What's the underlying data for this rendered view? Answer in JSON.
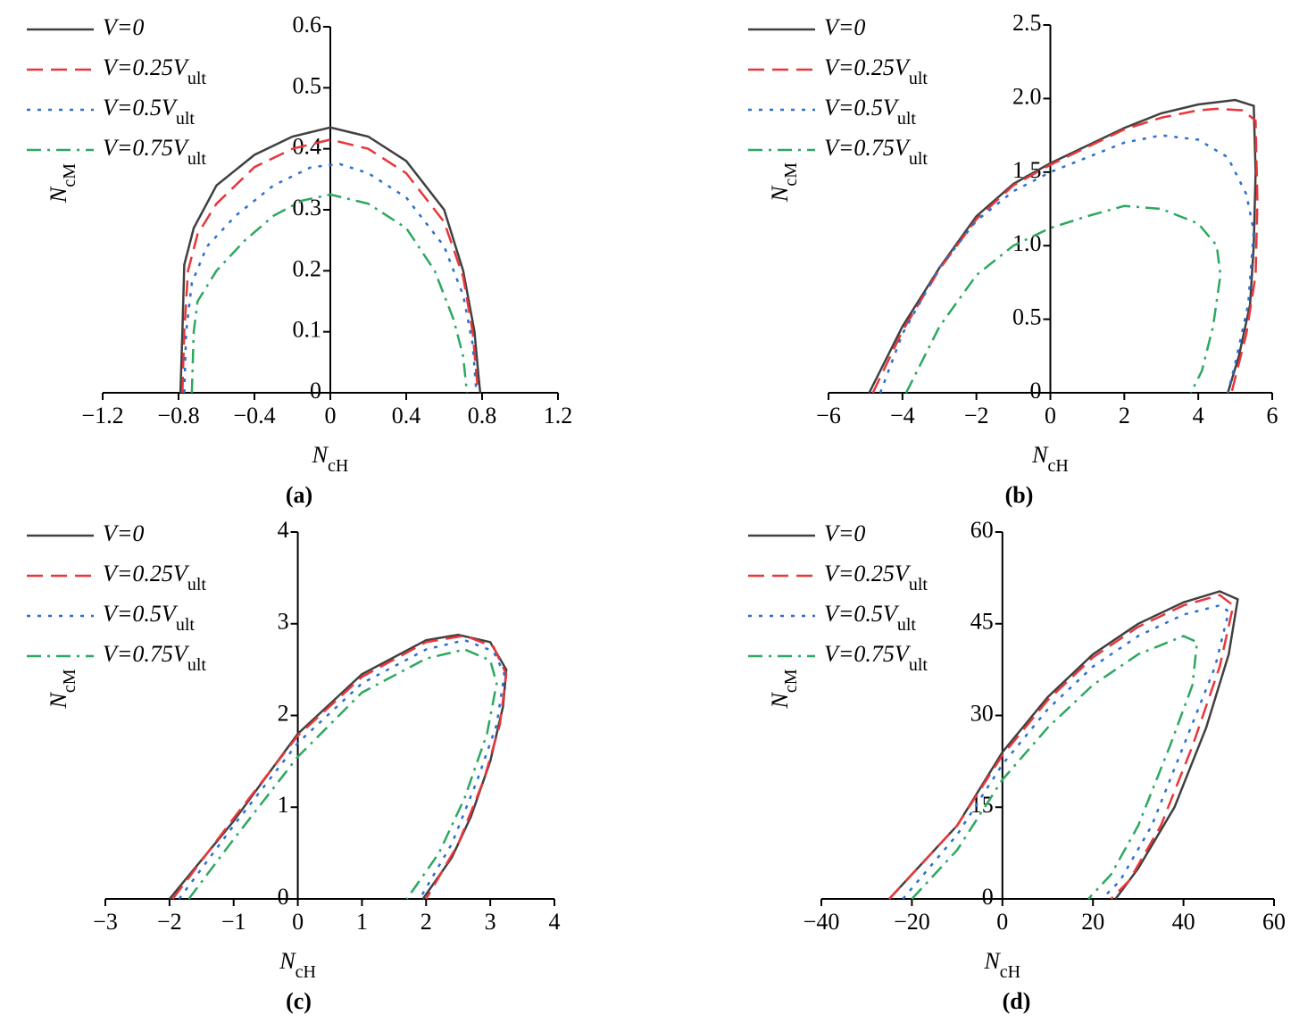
{
  "chart_data": [
    {
      "type": "line",
      "caption": "(a)",
      "xlabel": "N",
      "xlabel_sub": "cH",
      "ylabel": "N",
      "ylabel_sub": "cM",
      "xlim": [
        -1.2,
        1.2
      ],
      "ylim": [
        0,
        0.6
      ],
      "xticks": [
        {
          "value": -1.2,
          "label": "−1.2"
        },
        {
          "value": -0.8,
          "label": "−0.8"
        },
        {
          "value": -0.4,
          "label": "−0.4"
        },
        0,
        0.4,
        0.8,
        1.2
      ],
      "yticks": [
        0,
        0.1,
        0.2,
        0.3,
        0.4,
        0.5,
        0.6
      ],
      "series": [
        {
          "name": "V=0",
          "color": "#404040",
          "x": [
            -0.79,
            -0.78,
            -0.77,
            -0.72,
            -0.6,
            -0.4,
            -0.2,
            0,
            0.2,
            0.4,
            0.6,
            0.7,
            0.76,
            0.78,
            0.79
          ],
          "y": [
            0,
            0.1,
            0.21,
            0.27,
            0.34,
            0.39,
            0.42,
            0.435,
            0.42,
            0.38,
            0.3,
            0.2,
            0.1,
            0.03,
            0
          ]
        },
        {
          "name": "V=0.25V",
          "sub": "ult",
          "color": "#e8363b",
          "x": [
            -0.78,
            -0.77,
            -0.75,
            -0.7,
            -0.6,
            -0.4,
            -0.2,
            0,
            0.2,
            0.4,
            0.6,
            0.7,
            0.75,
            0.77,
            0.78
          ],
          "y": [
            0,
            0.1,
            0.2,
            0.26,
            0.31,
            0.37,
            0.4,
            0.415,
            0.4,
            0.36,
            0.28,
            0.19,
            0.1,
            0.03,
            0
          ]
        },
        {
          "name": "V=0.5V",
          "sub": "ult",
          "color": "#2b6fd1",
          "x": [
            -0.77,
            -0.76,
            -0.73,
            -0.65,
            -0.5,
            -0.3,
            -0.1,
            0.05,
            0.2,
            0.4,
            0.6,
            0.7,
            0.75,
            0.77
          ],
          "y": [
            0,
            0.1,
            0.18,
            0.24,
            0.29,
            0.34,
            0.37,
            0.375,
            0.36,
            0.32,
            0.24,
            0.16,
            0.08,
            0
          ]
        },
        {
          "name": "V=0.75V",
          "sub": "ult",
          "color": "#2ca860",
          "x": [
            -0.73,
            -0.72,
            -0.7,
            -0.6,
            -0.45,
            -0.3,
            -0.15,
            0,
            0.2,
            0.4,
            0.55,
            0.65,
            0.7,
            0.72
          ],
          "y": [
            0,
            0.1,
            0.15,
            0.2,
            0.25,
            0.29,
            0.315,
            0.325,
            0.31,
            0.27,
            0.2,
            0.12,
            0.06,
            0
          ]
        }
      ]
    },
    {
      "type": "line",
      "caption": "(b)",
      "xlabel": "N",
      "xlabel_sub": "cH",
      "ylabel": "N",
      "ylabel_sub": "cM",
      "xlim": [
        -6,
        6
      ],
      "ylim": [
        0,
        2.5
      ],
      "xticks": [
        {
          "value": -6,
          "label": "−6"
        },
        {
          "value": -4,
          "label": "−4"
        },
        {
          "value": -2,
          "label": "−2"
        },
        0,
        2,
        4,
        6
      ],
      "yticks": [
        0,
        0.5,
        {
          "value": 1,
          "label": "1.0"
        },
        1.5,
        {
          "value": 2,
          "label": "2.0"
        },
        2.5
      ],
      "series": [
        {
          "name": "V=0",
          "color": "#404040",
          "x": [
            -4.9,
            -4,
            -3,
            -2,
            -1,
            0,
            1,
            2,
            3,
            4,
            5,
            5.5,
            5.55,
            5.5,
            5.4,
            5.1,
            4.8
          ],
          "y": [
            0,
            0.45,
            0.85,
            1.2,
            1.42,
            1.56,
            1.68,
            1.8,
            1.9,
            1.96,
            1.99,
            1.95,
            1.5,
            1.0,
            0.6,
            0.25,
            0
          ]
        },
        {
          "name": "V=0.25V",
          "sub": "ult",
          "color": "#e8363b",
          "x": [
            -4.8,
            -4,
            -3,
            -2,
            -1,
            0,
            1,
            2,
            3,
            4,
            4.5,
            5.2,
            5.55,
            5.6,
            5.55,
            5.3,
            4.9
          ],
          "y": [
            0,
            0.42,
            0.84,
            1.18,
            1.41,
            1.55,
            1.67,
            1.79,
            1.87,
            1.92,
            1.93,
            1.92,
            1.85,
            1.3,
            0.8,
            0.4,
            0
          ]
        },
        {
          "name": "V=0.5V",
          "sub": "ult",
          "color": "#2b6fd1",
          "x": [
            -4.6,
            -4,
            -3,
            -2,
            -1,
            0,
            1,
            2,
            3,
            4,
            4.8,
            5.3,
            5.5,
            5.35,
            5,
            4.8
          ],
          "y": [
            0,
            0.4,
            0.85,
            1.17,
            1.37,
            1.5,
            1.6,
            1.7,
            1.75,
            1.72,
            1.6,
            1.35,
            1.1,
            0.6,
            0.2,
            0
          ]
        },
        {
          "name": "V=0.75V",
          "sub": "ult",
          "color": "#2ca860",
          "x": [
            -3.9,
            -3,
            -2,
            -1,
            0,
            1,
            2,
            3,
            4,
            4.5,
            4.6,
            4.4,
            4.1,
            3.8
          ],
          "y": [
            0,
            0.45,
            0.8,
            1.0,
            1.12,
            1.2,
            1.27,
            1.25,
            1.15,
            1.0,
            0.8,
            0.45,
            0.15,
            0
          ]
        }
      ]
    },
    {
      "type": "line",
      "caption": "(c)",
      "xlabel": "N",
      "xlabel_sub": "cH",
      "ylabel": "N",
      "ylabel_sub": "cM",
      "xlim": [
        -3,
        4
      ],
      "ylim": [
        0,
        4
      ],
      "xticks": [
        {
          "value": -3,
          "label": "−3"
        },
        {
          "value": -2,
          "label": "−2"
        },
        {
          "value": -1,
          "label": "−1"
        },
        0,
        1,
        2,
        3,
        4
      ],
      "yticks": [
        0,
        1,
        2,
        3,
        4
      ],
      "series": [
        {
          "name": "V=0",
          "color": "#404040",
          "x": [
            -2,
            -1,
            0,
            1,
            2,
            2.5,
            3,
            3.25,
            3.2,
            3,
            2.7,
            2.4,
            1.95
          ],
          "y": [
            0,
            0.85,
            1.8,
            2.45,
            2.82,
            2.88,
            2.8,
            2.5,
            2.1,
            1.5,
            0.9,
            0.45,
            0
          ]
        },
        {
          "name": "V=0.25V",
          "sub": "ult",
          "color": "#e8363b",
          "x": [
            -1.95,
            -1,
            0,
            1,
            2,
            2.6,
            3.05,
            3.25,
            3.15,
            2.9,
            2.5,
            2
          ],
          "y": [
            0,
            0.88,
            1.78,
            2.42,
            2.8,
            2.87,
            2.75,
            2.45,
            1.9,
            1.3,
            0.6,
            0
          ]
        },
        {
          "name": "V=0.5V",
          "sub": "ult",
          "color": "#2b6fd1",
          "x": [
            -1.85,
            -1,
            0,
            1,
            2,
            2.6,
            3.05,
            3.22,
            3.1,
            2.8,
            2.4,
            1.9
          ],
          "y": [
            0,
            0.8,
            1.7,
            2.35,
            2.72,
            2.82,
            2.7,
            2.45,
            1.9,
            1.3,
            0.6,
            0
          ]
        },
        {
          "name": "V=0.75V",
          "sub": "ult",
          "color": "#2ca860",
          "x": [
            -1.7,
            -1,
            0,
            1,
            2,
            2.6,
            3,
            3.1,
            2.95,
            2.6,
            2.2,
            1.7
          ],
          "y": [
            0,
            0.65,
            1.55,
            2.25,
            2.62,
            2.72,
            2.6,
            2.35,
            1.8,
            1.1,
            0.5,
            0
          ]
        }
      ]
    },
    {
      "type": "line",
      "caption": "(d)",
      "xlabel": "N",
      "xlabel_sub": "cH",
      "ylabel": "N",
      "ylabel_sub": "cM",
      "xlim": [
        -40,
        60
      ],
      "ylim": [
        0,
        60
      ],
      "xticks": [
        {
          "value": -40,
          "label": "−40"
        },
        {
          "value": -20,
          "label": "−20"
        },
        0,
        20,
        40,
        60
      ],
      "yticks": [
        0,
        15,
        30,
        45,
        60
      ],
      "series": [
        {
          "name": "V=0",
          "color": "#404040",
          "x": [
            -25,
            -10,
            0,
            10,
            20,
            30,
            40,
            48,
            52,
            50,
            45,
            38,
            30,
            25
          ],
          "y": [
            0,
            12,
            24,
            33,
            40,
            45,
            48.5,
            50.3,
            49,
            40,
            28,
            15,
            5,
            0
          ]
        },
        {
          "name": "V=0.25V",
          "sub": "ult",
          "color": "#e8363b",
          "x": [
            -25,
            -10,
            0,
            10,
            20,
            30,
            40,
            48,
            51,
            48,
            42,
            35,
            28,
            24
          ],
          "y": [
            0,
            12,
            23.5,
            32.5,
            39.5,
            44.5,
            48,
            49.7,
            48,
            38,
            25,
            12,
            3,
            0
          ]
        },
        {
          "name": "V=0.5V",
          "sub": "ult",
          "color": "#2b6fd1",
          "x": [
            -22,
            -10,
            0,
            10,
            20,
            30,
            40,
            48,
            50,
            47,
            40,
            33,
            26,
            22
          ],
          "y": [
            0,
            10.5,
            22,
            31,
            38,
            43,
            46.5,
            48,
            47,
            38,
            25,
            12,
            3,
            0
          ]
        },
        {
          "name": "V=0.75V",
          "sub": "ult",
          "color": "#2ca860",
          "x": [
            -20,
            -10,
            0,
            10,
            20,
            30,
            40,
            43,
            42,
            37,
            30,
            24,
            19
          ],
          "y": [
            0,
            8,
            19.5,
            28,
            35,
            40,
            43,
            42,
            35,
            25,
            12,
            4,
            0
          ]
        }
      ]
    }
  ]
}
